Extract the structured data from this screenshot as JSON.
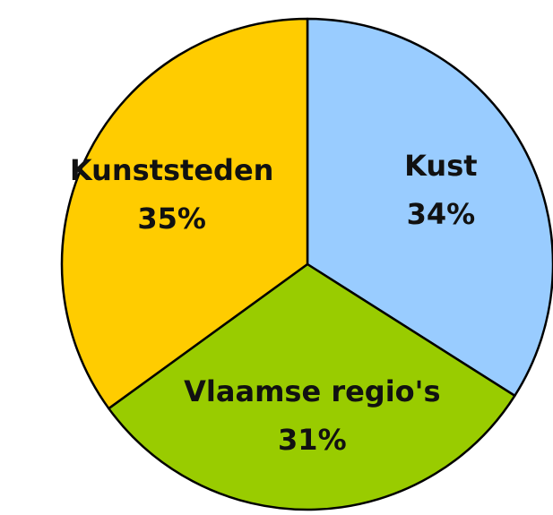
{
  "chart_data": {
    "type": "pie",
    "categories": [
      "Kust",
      "Vlaamse regio's",
      "Kunststeden"
    ],
    "values": [
      34,
      31,
      35
    ],
    "value_labels": [
      "34%",
      "31%",
      "35%"
    ],
    "colors": [
      "#99ccff",
      "#99cc00",
      "#ffcc00"
    ]
  }
}
